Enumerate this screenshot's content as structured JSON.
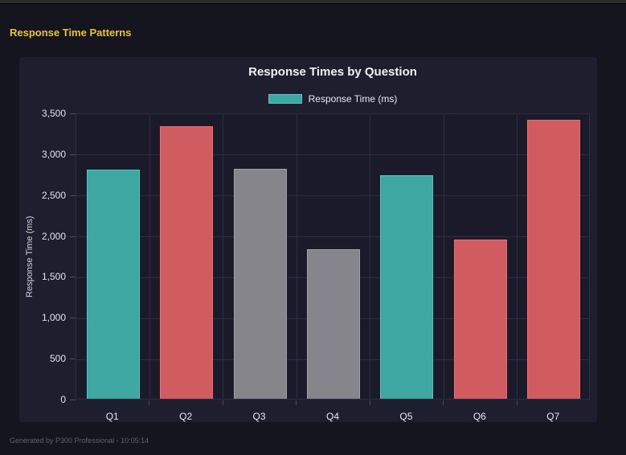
{
  "header": {
    "title": "Response Time Patterns"
  },
  "footer": {
    "text": "Generated by P300 Professional - 10:05:14"
  },
  "colors": {
    "page_bg": "#15151f",
    "panel_bg": "#1e1e2f",
    "plot_bg": "#1a1a2a",
    "gridline": "#2e2e42",
    "axis_line": "#4a4a60",
    "accent_yellow": "#e8c62b",
    "title_text": "#f2f2f5",
    "tick_text": "#e4e4ec",
    "footer_text": "#60606d"
  },
  "chart_data": {
    "type": "bar",
    "title": "Response Times by Question",
    "xlabel": "",
    "ylabel": "Response Time (ms)",
    "legend_position": "top",
    "grid": true,
    "legend": {
      "label": "Response Time (ms)",
      "swatch_fill": "#3fa7a2",
      "swatch_border": "#54c7c1"
    },
    "categories": [
      "Q1",
      "Q2",
      "Q3",
      "Q4",
      "Q5",
      "Q6",
      "Q7"
    ],
    "series": [
      {
        "name": "Response Time (ms)",
        "values": [
          2800,
          3330,
          2810,
          1830,
          2730,
          1950,
          3410
        ]
      }
    ],
    "bar_color_keys": [
      "teal",
      "red",
      "gray",
      "gray",
      "teal",
      "red",
      "red"
    ],
    "palette": {
      "teal": {
        "fill": "#3fa7a2",
        "border": "#54c7c1"
      },
      "red": {
        "fill": "#d15c60",
        "border": "#f06a6e"
      },
      "gray": {
        "fill": "#85858b",
        "border": "#9fa0a6"
      }
    },
    "ylim": [
      0,
      3500
    ],
    "ytick_step": 500
  }
}
